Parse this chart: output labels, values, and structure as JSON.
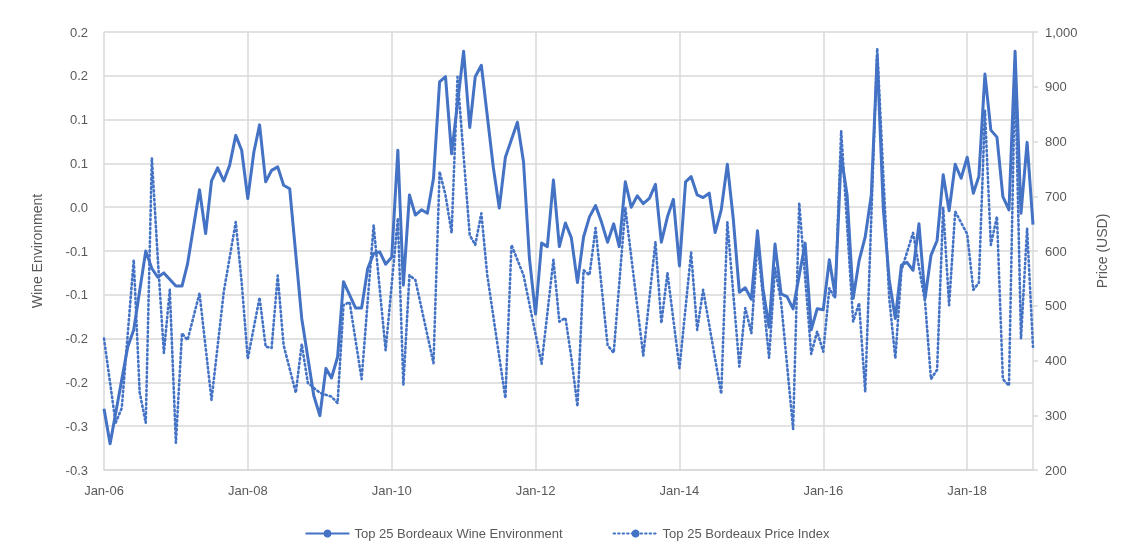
{
  "chart_data": {
    "type": "line",
    "ylabel": "Wine Environment",
    "y2label": "Price (USD)",
    "xlim": [
      "2006-01",
      "2018-12"
    ],
    "xticks": [
      {
        "value": "2006-01",
        "label": "Jan-06"
      },
      {
        "value": "2008-01",
        "label": "Jan-08"
      },
      {
        "value": "2010-01",
        "label": "Jan-10"
      },
      {
        "value": "2012-01",
        "label": "Jan-12"
      },
      {
        "value": "2014-01",
        "label": "Jan-14"
      },
      {
        "value": "2016-01",
        "label": "Jan-16"
      },
      {
        "value": "2018-01",
        "label": "Jan-18"
      }
    ],
    "ylim": [
      -0.3,
      0.2
    ],
    "yticks": [
      -0.3,
      {
        "value": -0.25,
        "label": "-0.3"
      },
      -0.2,
      {
        "value": -0.15,
        "label": "-0.2"
      },
      -0.1,
      {
        "value": -0.05,
        "label": "-0.1"
      },
      {
        "value": 0,
        "label": "0.0"
      },
      {
        "value": 0.05,
        "label": "0.1"
      },
      0.1,
      {
        "value": 0.15,
        "label": "0.2"
      },
      0.2
    ],
    "y2lim": [
      200,
      1000
    ],
    "y2ticks": [
      200,
      300,
      400,
      500,
      600,
      700,
      800,
      900,
      {
        "value": 1000,
        "label": "1,000"
      }
    ],
    "grid": true,
    "legend": "bottom",
    "marker": "none",
    "series": [
      {
        "name": "Top 25 Bordeaux Wine Environment",
        "color": "#4472c4",
        "line_style": "solid",
        "x": [
          "2006-01",
          "2006-02",
          "2006-05",
          "2006-06",
          "2006-08",
          "2006-09",
          "2006-10",
          "2006-11",
          "2007-01",
          "2007-02",
          "2007-03",
          "2007-05",
          "2007-06",
          "2007-07",
          "2007-08",
          "2007-09",
          "2007-10",
          "2007-11",
          "2007-12",
          "2008-01",
          "2008-02",
          "2008-03",
          "2008-04",
          "2008-05",
          "2008-06",
          "2008-07",
          "2008-08",
          "2008-10",
          "2008-12",
          "2009-01",
          "2009-02",
          "2009-03",
          "2009-04",
          "2009-05",
          "2009-07",
          "2009-08",
          "2009-09",
          "2009-10",
          "2009-11",
          "2009-12",
          "2010-01",
          "2010-02",
          "2010-03",
          "2010-04",
          "2010-05",
          "2010-06",
          "2010-07",
          "2010-08",
          "2010-09",
          "2010-10",
          "2010-11",
          "2011-01",
          "2011-02",
          "2011-03",
          "2011-04",
          "2011-06",
          "2011-07",
          "2011-08",
          "2011-10",
          "2011-11",
          "2011-12",
          "2012-01",
          "2012-02",
          "2012-03",
          "2012-04",
          "2012-05",
          "2012-06",
          "2012-07",
          "2012-08",
          "2012-09",
          "2012-10",
          "2012-11",
          "2012-12",
          "2013-01",
          "2013-02",
          "2013-03",
          "2013-04",
          "2013-05",
          "2013-06",
          "2013-07",
          "2013-08",
          "2013-09",
          "2013-10",
          "2013-11",
          "2013-12",
          "2014-01",
          "2014-02",
          "2014-03",
          "2014-04",
          "2014-05",
          "2014-06",
          "2014-07",
          "2014-08",
          "2014-09",
          "2014-10",
          "2014-11",
          "2014-12",
          "2015-01",
          "2015-02",
          "2015-03",
          "2015-04",
          "2015-05",
          "2015-06",
          "2015-07",
          "2015-08",
          "2015-10",
          "2015-11",
          "2015-12",
          "2016-01",
          "2016-02",
          "2016-03",
          "2016-04",
          "2016-05",
          "2016-06",
          "2016-07",
          "2016-08",
          "2016-09",
          "2016-10",
          "2016-11",
          "2016-12",
          "2017-01",
          "2017-02",
          "2017-03",
          "2017-04",
          "2017-05",
          "2017-06",
          "2017-07",
          "2017-08",
          "2017-09",
          "2017-10",
          "2017-11",
          "2017-12",
          "2018-01",
          "2018-02",
          "2018-03",
          "2018-04",
          "2018-05",
          "2018-06",
          "2018-07",
          "2018-08",
          "2018-09",
          "2018-10",
          "2018-11",
          "2018-12"
        ],
        "values": [
          -0.23,
          -0.27,
          -0.16,
          -0.14,
          -0.05,
          -0.07,
          -0.08,
          -0.075,
          -0.09,
          -0.09,
          -0.065,
          0.02,
          -0.03,
          0.03,
          0.045,
          0.03,
          0.048,
          0.082,
          0.065,
          0.01,
          0.063,
          0.094,
          0.029,
          0.042,
          0.046,
          0.025,
          0.021,
          -0.127,
          -0.215,
          -0.238,
          -0.184,
          -0.195,
          -0.171,
          -0.085,
          -0.115,
          -0.115,
          -0.07,
          -0.053,
          -0.051,
          -0.065,
          -0.057,
          0.065,
          -0.089,
          0.014,
          -0.009,
          -0.003,
          -0.007,
          0.033,
          0.143,
          0.149,
          0.061,
          0.178,
          0.091,
          0.149,
          0.162,
          0.045,
          -0.001,
          0.057,
          0.097,
          0.052,
          -0.058,
          -0.122,
          -0.041,
          -0.045,
          0.031,
          -0.045,
          -0.018,
          -0.035,
          -0.086,
          -0.034,
          -0.011,
          0.002,
          -0.017,
          -0.04,
          -0.019,
          -0.045,
          0.029,
          0.0,
          0.013,
          0.004,
          0.01,
          0.026,
          -0.04,
          -0.011,
          0.009,
          -0.067,
          0.029,
          0.035,
          0.014,
          0.011,
          0.016,
          -0.029,
          -0.003,
          0.049,
          -0.013,
          -0.097,
          -0.092,
          -0.105,
          -0.027,
          -0.093,
          -0.137,
          -0.042,
          -0.099,
          -0.102,
          -0.116,
          -0.041,
          -0.14,
          -0.116,
          -0.117,
          -0.06,
          -0.1,
          0.059,
          0.014,
          -0.104,
          -0.061,
          -0.034,
          0.014,
          0.172,
          -0.002,
          -0.083,
          -0.127,
          -0.066,
          -0.063,
          -0.072,
          -0.019,
          -0.104,
          -0.055,
          -0.038,
          0.037,
          -0.004,
          0.049,
          0.033,
          0.057,
          0.016,
          0.035,
          0.152,
          0.088,
          0.08,
          0.012,
          -0.003,
          0.178,
          -0.007,
          0.074,
          -0.02
        ]
      },
      {
        "name": "Top 25 Bordeaux Price Index",
        "color": "#4472c4",
        "line_style": "dotted",
        "axis": "y2",
        "x": [
          "2006-01",
          "2006-03",
          "2006-04",
          "2006-06",
          "2006-07",
          "2006-08",
          "2006-09",
          "2006-10",
          "2006-11",
          "2006-12",
          "2007-01",
          "2007-02",
          "2007-03",
          "2007-05",
          "2007-07",
          "2007-09",
          "2007-11",
          "2007-12",
          "2008-01",
          "2008-03",
          "2008-04",
          "2008-05",
          "2008-06",
          "2008-07",
          "2008-09",
          "2008-10",
          "2008-11",
          "2009-01",
          "2009-03",
          "2009-04",
          "2009-05",
          "2009-06",
          "2009-08",
          "2009-10",
          "2009-12",
          "2010-02",
          "2010-03",
          "2010-04",
          "2010-05",
          "2010-08",
          "2010-09",
          "2010-10",
          "2010-11",
          "2010-12",
          "2011-02",
          "2011-03",
          "2011-04",
          "2011-05",
          "2011-08",
          "2011-09",
          "2011-11",
          "2012-02",
          "2012-04",
          "2012-05",
          "2012-06",
          "2012-07",
          "2012-08",
          "2012-09",
          "2012-10",
          "2012-11",
          "2013-01",
          "2013-02",
          "2013-04",
          "2013-07",
          "2013-09",
          "2013-10",
          "2013-11",
          "2014-01",
          "2014-03",
          "2014-04",
          "2014-05",
          "2014-08",
          "2014-09",
          "2014-11",
          "2014-12",
          "2015-01",
          "2015-02",
          "2015-04",
          "2015-05",
          "2015-06",
          "2015-08",
          "2015-09",
          "2015-11",
          "2015-12",
          "2016-01",
          "2016-02",
          "2016-03",
          "2016-04",
          "2016-06",
          "2016-07",
          "2016-08",
          "2016-10",
          "2016-12",
          "2017-01",
          "2017-02",
          "2017-04",
          "2017-06",
          "2017-07",
          "2017-08",
          "2017-09",
          "2017-10",
          "2017-11",
          "2018-01",
          "2018-02",
          "2018-03",
          "2018-04",
          "2018-05",
          "2018-06",
          "2018-07",
          "2018-08",
          "2018-09",
          "2018-10",
          "2018-11",
          "2018-12"
        ],
        "values": [
          440,
          286,
          313,
          584,
          342,
          286,
          770,
          587,
          414,
          529,
          250,
          450,
          437,
          523,
          328,
          525,
          653,
          543,
          403,
          515,
          425,
          423,
          555,
          428,
          341,
          430,
          359,
          341,
          334,
          322,
          501,
          507,
          366,
          647,
          419,
          660,
          355,
          556,
          547,
          395,
          745,
          702,
          633,
          918,
          629,
          611,
          669,
          556,
          331,
          611,
          556,
          394,
          584,
          471,
          478,
          405,
          316,
          565,
          556,
          642,
          428,
          414,
          679,
          409,
          617,
          468,
          560,
          386,
          597,
          456,
          529,
          339,
          653,
          389,
          496,
          450,
          617,
          405,
          569,
          507,
          275,
          688,
          412,
          453,
          416,
          532,
          514,
          819,
          471,
          505,
          343,
          970,
          514,
          404,
          565,
          633,
          507,
          366,
          383,
          679,
          501,
          672,
          631,
          529,
          542,
          856,
          611,
          663,
          366,
          354,
          934,
          440,
          641,
          425
        ]
      }
    ]
  }
}
